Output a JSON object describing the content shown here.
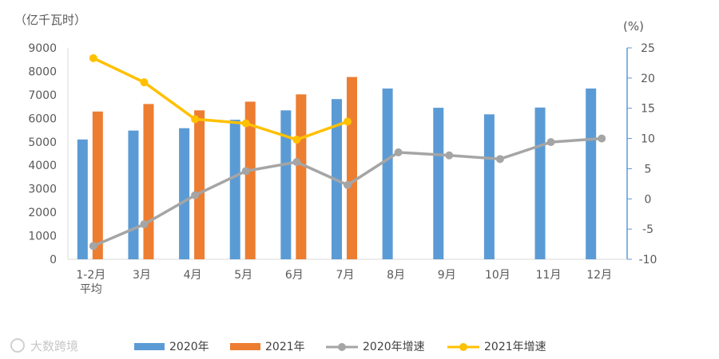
{
  "chart_data": {
    "type": "bar",
    "left_unit": "（亿千瓦时）",
    "right_unit": "(%)",
    "categories": [
      "1-2月\n平均",
      "3月",
      "4月",
      "5月",
      "6月",
      "7月",
      "8月",
      "9月",
      "10月",
      "11月",
      "12月"
    ],
    "bar_series": [
      {
        "name": "2020年",
        "color": "#5b9bd5",
        "values": [
          5100,
          5480,
          5580,
          5940,
          6340,
          6820,
          7270,
          6450,
          6170,
          6460,
          7270
        ]
      },
      {
        "name": "2021年",
        "color": "#ed7d31",
        "values": [
          6290,
          6610,
          6340,
          6710,
          7020,
          7760,
          null,
          null,
          null,
          null,
          null
        ]
      }
    ],
    "line_series": [
      {
        "name": "2020年增速",
        "color": "#a5a5a5",
        "values": [
          -7.8,
          -4.2,
          0.6,
          4.6,
          6.1,
          2.3,
          7.7,
          7.2,
          6.6,
          9.4,
          10.0
        ]
      },
      {
        "name": "2021年增速",
        "color": "#ffc000",
        "values": [
          23.3,
          19.3,
          13.2,
          12.5,
          9.8,
          12.8,
          null,
          null,
          null,
          null,
          null
        ]
      }
    ],
    "ylim_left": [
      0,
      9000
    ],
    "yticks_left": [
      0,
      1000,
      2000,
      3000,
      4000,
      5000,
      6000,
      7000,
      8000,
      9000
    ],
    "ylim_right": [
      -10,
      25
    ],
    "yticks_right": [
      -10,
      -5,
      0,
      5,
      10,
      15,
      20,
      25
    ],
    "legend_position": "bottom"
  },
  "watermark": "大数跨境"
}
